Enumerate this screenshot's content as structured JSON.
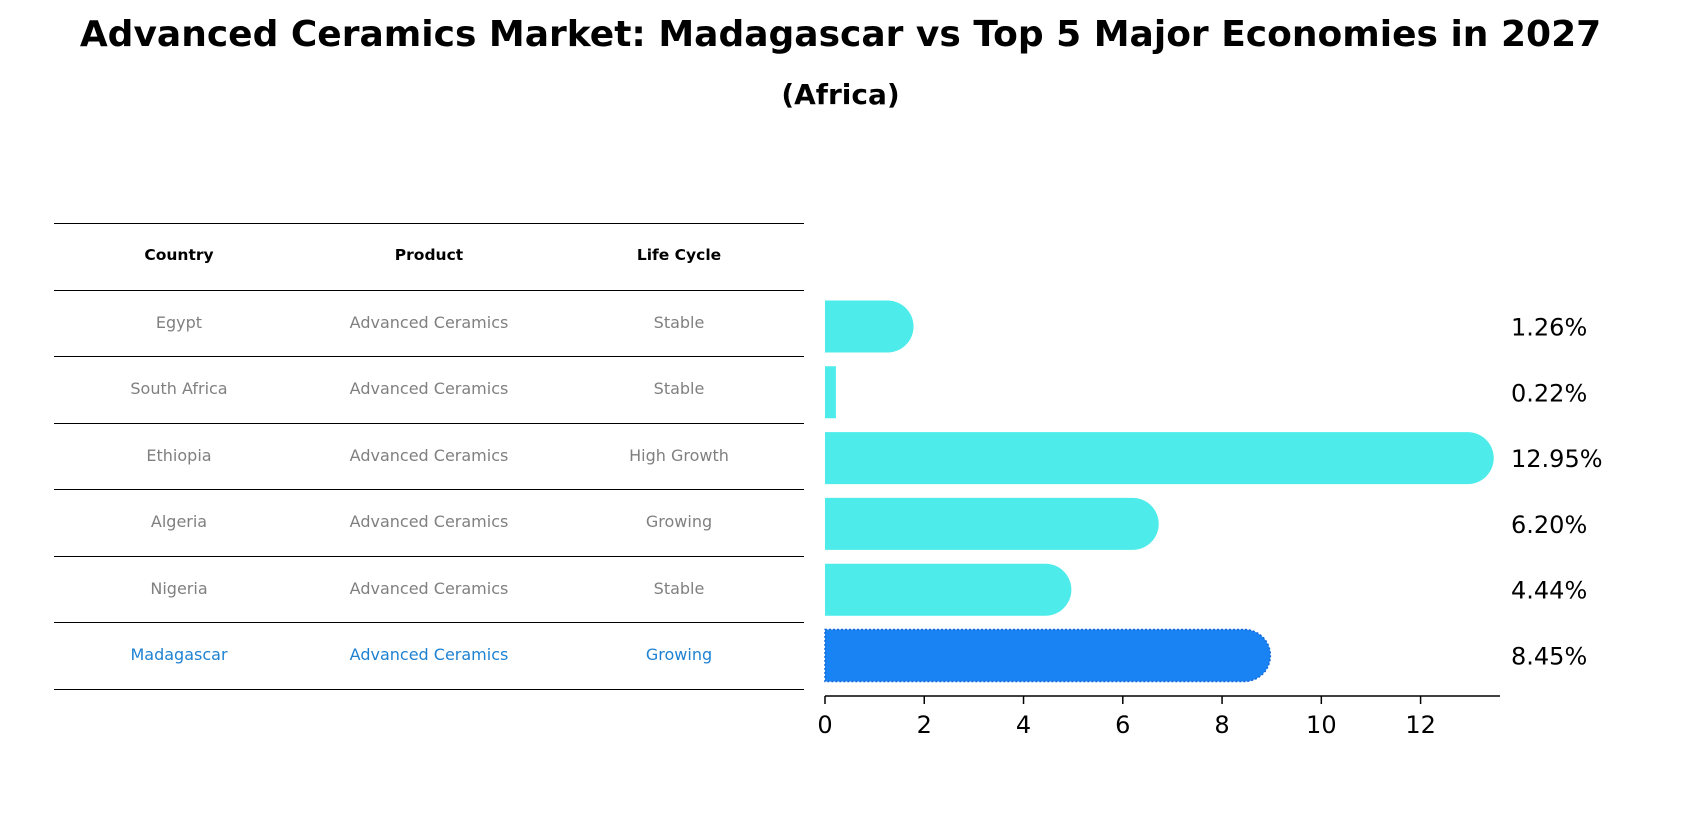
{
  "title": "Advanced Ceramics Market: Madagascar vs Top 5 Major Economies in 2027",
  "subtitle": "(Africa)",
  "table": {
    "headers": [
      "Country",
      "Product",
      "Life Cycle"
    ],
    "rows": [
      {
        "country": "Egypt",
        "product": "Advanced Ceramics",
        "life_cycle": "Stable"
      },
      {
        "country": "South Africa",
        "product": "Advanced Ceramics",
        "life_cycle": "Stable"
      },
      {
        "country": "Ethiopia",
        "product": "Advanced Ceramics",
        "life_cycle": "High Growth"
      },
      {
        "country": "Algeria",
        "product": "Advanced Ceramics",
        "life_cycle": "Growing"
      },
      {
        "country": "Nigeria",
        "product": "Advanced Ceramics",
        "life_cycle": "Stable"
      },
      {
        "country": "Madagascar",
        "product": "Advanced Ceramics",
        "life_cycle": "Growing"
      }
    ]
  },
  "chart_data": {
    "type": "bar",
    "orientation": "horizontal",
    "categories": [
      "Egypt",
      "South Africa",
      "Ethiopia",
      "Algeria",
      "Nigeria",
      "Madagascar"
    ],
    "values": [
      1.26,
      0.22,
      12.95,
      6.2,
      4.44,
      8.45
    ],
    "value_labels": [
      "1.26%",
      "0.22%",
      "12.95%",
      "6.20%",
      "4.44%",
      "8.45%"
    ],
    "highlight": "Madagascar",
    "xlim": [
      0,
      13.6
    ],
    "xticks": [
      0,
      2,
      4,
      6,
      8,
      10,
      12
    ],
    "xlabel": "",
    "ylabel": "",
    "colors": {
      "bar": "#4deceb",
      "highlight": "#1a83f4",
      "table_highlight_text": "#1e82d2",
      "table_text": "#808080"
    }
  }
}
